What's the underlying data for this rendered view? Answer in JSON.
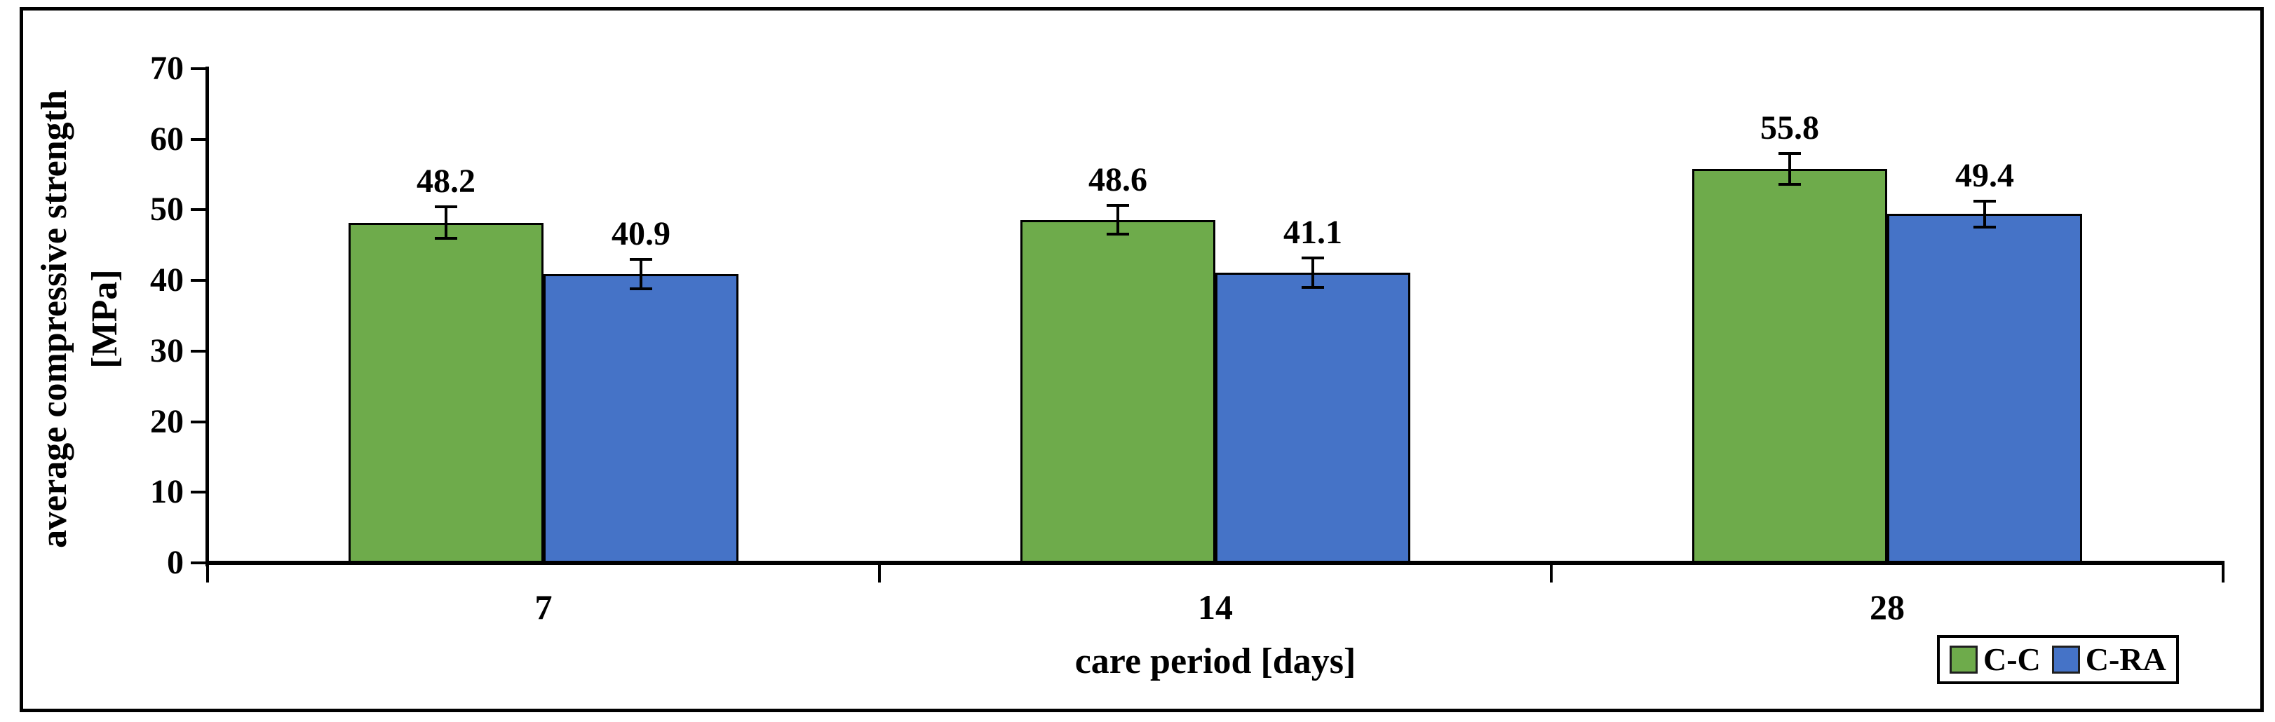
{
  "chart_data": {
    "type": "bar",
    "title": "",
    "xlabel": "care period [days]",
    "ylabel": "average compressive strength [MPa]",
    "ylabel_lines": [
      "average compressive strength",
      "[MPa]"
    ],
    "categories": [
      "7",
      "14",
      "28"
    ],
    "series": [
      {
        "name": "C-C",
        "color": "#6EAB4B",
        "border_color": "#000000",
        "values": [
          48.2,
          48.6,
          55.8
        ],
        "labels": [
          "48.2",
          "48.6",
          "55.8"
        ],
        "errors": [
          2.2,
          2.0,
          2.2
        ]
      },
      {
        "name": "C-RA",
        "color": "#4573C7",
        "border_color": "#000000",
        "values": [
          40.9,
          41.1,
          49.4
        ],
        "labels": [
          "40.9",
          "41.1",
          "49.4"
        ],
        "errors": [
          2.1,
          2.1,
          1.8
        ]
      }
    ],
    "ylim": [
      0,
      70
    ],
    "yticks": [
      0,
      10,
      20,
      30,
      40,
      50,
      60,
      70
    ],
    "grid": false,
    "error_bars": true,
    "legend": {
      "position": "bottom-right",
      "entries": [
        "C-C",
        "C-RA"
      ]
    },
    "axis_color": "#000000",
    "background": "#ffffff"
  }
}
